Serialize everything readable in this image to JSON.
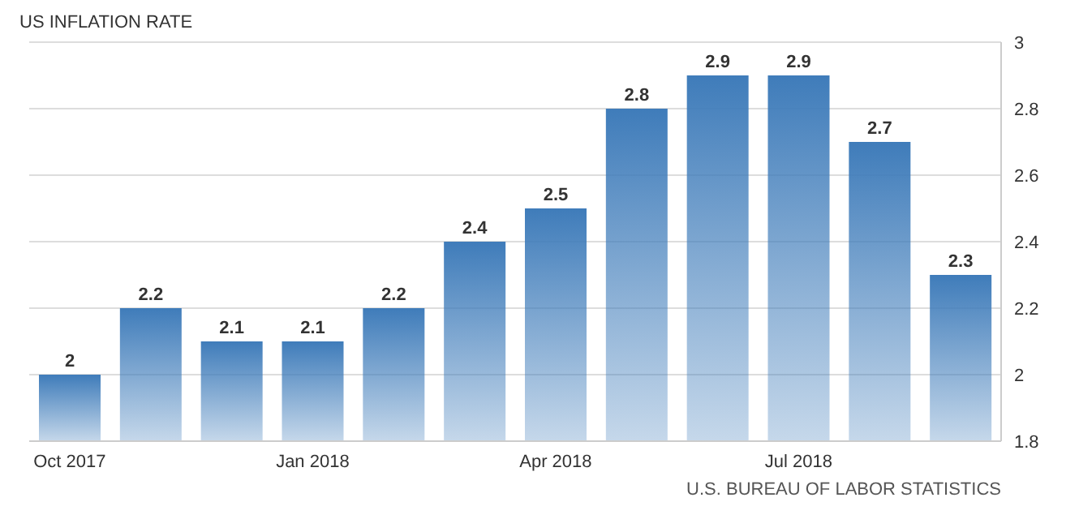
{
  "chart_data": {
    "type": "bar",
    "title": "US INFLATION RATE",
    "categories": [
      "Oct 2017",
      null,
      null,
      "Jan 2018",
      null,
      null,
      "Apr 2018",
      null,
      null,
      "Jul 2018",
      null,
      null
    ],
    "values": [
      2,
      2.2,
      2.1,
      2.1,
      2.2,
      2.4,
      2.5,
      2.8,
      2.9,
      2.9,
      2.7,
      2.3
    ],
    "color": "#3f7cba",
    "ylim": [
      1.8,
      3
    ],
    "yticks": [
      1.8,
      2,
      2.2,
      2.4,
      2.6,
      2.8,
      3
    ],
    "grid": "y",
    "data_labels": true,
    "annotations": [
      "U.S. BUREAU OF LABOR STATISTICS"
    ]
  }
}
